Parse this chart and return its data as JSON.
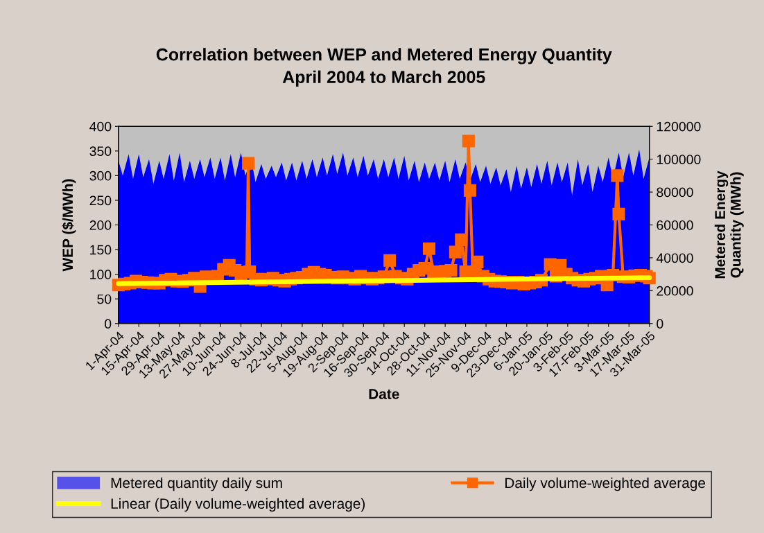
{
  "chart_data": {
    "type": "line",
    "title": "Correlation between WEP and Metered Energy Quantity\nApril 2004 to March 2005",
    "xlabel": "Date",
    "ylabel": "WEP ($/MWh)",
    "y2label": "Metered Energy\nQuantity (MWh)",
    "xlim": [
      "2004-04-01",
      "2005-03-31"
    ],
    "xticks": [
      {
        "value": "2004-04-01",
        "label": "1-Apr-04"
      },
      {
        "value": "2004-04-15",
        "label": "15-Apr-04"
      },
      {
        "value": "2004-04-29",
        "label": "29-Apr-04"
      },
      {
        "value": "2004-05-13",
        "label": "13-May-04"
      },
      {
        "value": "2004-05-27",
        "label": "27-May-04"
      },
      {
        "value": "2004-06-10",
        "label": "10-Jun-04"
      },
      {
        "value": "2004-06-24",
        "label": "24-Jun-04"
      },
      {
        "value": "2004-07-08",
        "label": "8-Jul-04"
      },
      {
        "value": "2004-07-22",
        "label": "22-Jul-04"
      },
      {
        "value": "2004-08-05",
        "label": "5-Aug-04"
      },
      {
        "value": "2004-08-19",
        "label": "19-Aug-04"
      },
      {
        "value": "2004-09-02",
        "label": "2-Sep-04"
      },
      {
        "value": "2004-09-16",
        "label": "16-Sep-04"
      },
      {
        "value": "2004-09-30",
        "label": "30-Sep-04"
      },
      {
        "value": "2004-10-14",
        "label": "14-Oct-04"
      },
      {
        "value": "2004-10-28",
        "label": "28-Oct-04"
      },
      {
        "value": "2004-11-11",
        "label": "11-Nov-04"
      },
      {
        "value": "2004-11-25",
        "label": "25-Nov-04"
      },
      {
        "value": "2004-12-09",
        "label": "9-Dec-04"
      },
      {
        "value": "2004-12-23",
        "label": "23-Dec-04"
      },
      {
        "value": "2005-01-06",
        "label": "6-Jan-05"
      },
      {
        "value": "2005-01-20",
        "label": "20-Jan-05"
      },
      {
        "value": "2005-02-03",
        "label": "3-Feb-05"
      },
      {
        "value": "2005-02-17",
        "label": "17-Feb-05"
      },
      {
        "value": "2005-03-03",
        "label": "3-Mar-05"
      },
      {
        "value": "2005-03-17",
        "label": "17-Mar-05"
      },
      {
        "value": "2005-03-31",
        "label": "31-Mar-05"
      }
    ],
    "ylim": [
      0,
      400
    ],
    "yticks": [
      0,
      50,
      100,
      150,
      200,
      250,
      300,
      350,
      400
    ],
    "y2lim": [
      0,
      120000
    ],
    "y2ticks": [
      0,
      20000,
      40000,
      60000,
      80000,
      100000,
      120000
    ],
    "grid": false,
    "legend": "bottom",
    "series": [
      {
        "name": "Metered quantity daily sum",
        "type": "area",
        "axis": "y2",
        "color": "#0000ff",
        "x": [
          "2004-04-01",
          "2004-04-04",
          "2004-04-08",
          "2004-04-11",
          "2004-04-15",
          "2004-04-18",
          "2004-04-22",
          "2004-04-25",
          "2004-04-29",
          "2004-05-02",
          "2004-05-06",
          "2004-05-09",
          "2004-05-13",
          "2004-05-16",
          "2004-05-20",
          "2004-05-23",
          "2004-05-27",
          "2004-05-30",
          "2004-06-03",
          "2004-06-06",
          "2004-06-10",
          "2004-06-13",
          "2004-06-17",
          "2004-06-20",
          "2004-06-24",
          "2004-06-27",
          "2004-07-01",
          "2004-07-04",
          "2004-07-08",
          "2004-07-11",
          "2004-07-15",
          "2004-07-18",
          "2004-07-22",
          "2004-07-25",
          "2004-07-29",
          "2004-08-01",
          "2004-08-05",
          "2004-08-08",
          "2004-08-12",
          "2004-08-15",
          "2004-08-19",
          "2004-08-22",
          "2004-08-26",
          "2004-08-29",
          "2004-09-02",
          "2004-09-05",
          "2004-09-09",
          "2004-09-12",
          "2004-09-16",
          "2004-09-19",
          "2004-09-23",
          "2004-09-26",
          "2004-09-30",
          "2004-10-03",
          "2004-10-07",
          "2004-10-10",
          "2004-10-14",
          "2004-10-17",
          "2004-10-21",
          "2004-10-24",
          "2004-10-28",
          "2004-10-31",
          "2004-11-04",
          "2004-11-07",
          "2004-11-11",
          "2004-11-14",
          "2004-11-18",
          "2004-11-21",
          "2004-11-25",
          "2004-11-28",
          "2004-12-02",
          "2004-12-05",
          "2004-12-09",
          "2004-12-12",
          "2004-12-16",
          "2004-12-19",
          "2004-12-23",
          "2004-12-26",
          "2004-12-30",
          "2005-01-02",
          "2005-01-06",
          "2005-01-09",
          "2005-01-13",
          "2005-01-16",
          "2005-01-20",
          "2005-01-23",
          "2005-01-27",
          "2005-01-30",
          "2005-02-03",
          "2005-02-06",
          "2005-02-10",
          "2005-02-13",
          "2005-02-17",
          "2005-02-20",
          "2005-02-24",
          "2005-02-27",
          "2005-03-03",
          "2005-03-06",
          "2005-03-10",
          "2005-03-13",
          "2005-03-17",
          "2005-03-20",
          "2005-03-24",
          "2005-03-27",
          "2005-03-31"
        ],
        "values": [
          99000,
          90000,
          103000,
          88000,
          103000,
          89000,
          100000,
          85000,
          99000,
          88000,
          103000,
          87000,
          104000,
          86000,
          99000,
          88000,
          100000,
          89000,
          101000,
          88000,
          101000,
          87000,
          103000,
          89000,
          104000,
          90000,
          100000,
          86000,
          97000,
          88000,
          96000,
          89000,
          98000,
          87000,
          98000,
          87000,
          99000,
          88000,
          100000,
          89000,
          101000,
          90000,
          103000,
          91000,
          104000,
          90000,
          101000,
          89000,
          102000,
          90000,
          100000,
          88000,
          100000,
          89000,
          101000,
          88000,
          102000,
          87000,
          99000,
          86000,
          98000,
          88000,
          98000,
          87000,
          99000,
          86000,
          100000,
          88000,
          98000,
          87000,
          97000,
          86000,
          96000,
          85000,
          95000,
          84000,
          94000,
          80000,
          96000,
          82000,
          95000,
          83000,
          97000,
          85000,
          99000,
          84000,
          98000,
          86000,
          98000,
          78000,
          100000,
          84000,
          97000,
          80000,
          96000,
          86000,
          101000,
          88000,
          104000,
          89000,
          104000,
          90000,
          106000,
          88000,
          101000
        ]
      },
      {
        "name": "Daily volume-weighted average",
        "color": "#ff6600",
        "marker": "square",
        "x": [
          "2004-04-01",
          "2004-04-05",
          "2004-04-09",
          "2004-04-13",
          "2004-04-17",
          "2004-04-21",
          "2004-04-25",
          "2004-04-29",
          "2004-05-03",
          "2004-05-07",
          "2004-05-11",
          "2004-05-15",
          "2004-05-19",
          "2004-05-23",
          "2004-05-27",
          "2004-05-31",
          "2004-06-04",
          "2004-06-08",
          "2004-06-12",
          "2004-06-16",
          "2004-06-20",
          "2004-06-24",
          "2004-06-28",
          "2004-06-29",
          "2004-06-30",
          "2004-07-04",
          "2004-07-08",
          "2004-07-12",
          "2004-07-16",
          "2004-07-20",
          "2004-07-24",
          "2004-07-28",
          "2004-08-01",
          "2004-08-05",
          "2004-08-09",
          "2004-08-13",
          "2004-08-17",
          "2004-08-21",
          "2004-08-25",
          "2004-08-29",
          "2004-09-02",
          "2004-09-06",
          "2004-09-10",
          "2004-09-14",
          "2004-09-18",
          "2004-09-22",
          "2004-09-26",
          "2004-09-30",
          "2004-10-04",
          "2004-10-08",
          "2004-10-12",
          "2004-10-16",
          "2004-10-20",
          "2004-10-24",
          "2004-10-28",
          "2004-10-31",
          "2004-11-03",
          "2004-11-07",
          "2004-11-11",
          "2004-11-15",
          "2004-11-18",
          "2004-11-22",
          "2004-11-25",
          "2004-11-27",
          "2004-11-28",
          "2004-11-30",
          "2004-12-03",
          "2004-12-07",
          "2004-12-11",
          "2004-12-15",
          "2004-12-19",
          "2004-12-23",
          "2004-12-27",
          "2004-12-31",
          "2005-01-04",
          "2005-01-08",
          "2005-01-12",
          "2005-01-16",
          "2005-01-22",
          "2005-01-26",
          "2005-01-29",
          "2005-02-02",
          "2005-02-06",
          "2005-02-10",
          "2005-02-14",
          "2005-02-18",
          "2005-02-22",
          "2005-02-26",
          "2005-03-02",
          "2005-03-06",
          "2005-03-09",
          "2005-03-10",
          "2005-03-13",
          "2005-03-17",
          "2005-03-21",
          "2005-03-25",
          "2005-03-29",
          "2005-03-31"
        ],
        "values": [
          78,
          80,
          82,
          86,
          84,
          83,
          82,
          82,
          88,
          90,
          86,
          85,
          88,
          92,
          75,
          95,
          92,
          96,
          110,
          118,
          108,
          100,
          104,
          325,
          105,
          90,
          88,
          90,
          92,
          88,
          86,
          90,
          92,
          94,
          100,
          104,
          100,
          98,
          94,
          92,
          95,
          92,
          90,
          96,
          92,
          90,
          92,
          95,
          128,
          96,
          92,
          90,
          100,
          108,
          112,
          152,
          105,
          104,
          106,
          108,
          145,
          170,
          105,
          370,
          270,
          102,
          125,
          96,
          90,
          86,
          85,
          84,
          82,
          84,
          80,
          82,
          84,
          88,
          120,
          96,
          118,
          100,
          92,
          88,
          86,
          90,
          92,
          96,
          78,
          98,
          300,
          222,
          95,
          94,
          97,
          98,
          96,
          92
        ]
      },
      {
        "name": "Linear (Daily volume-weighted average)",
        "color": "#ffff00",
        "marker": "none",
        "x": [
          "2004-04-01",
          "2005-03-31"
        ],
        "values": [
          81,
          93
        ]
      }
    ]
  }
}
